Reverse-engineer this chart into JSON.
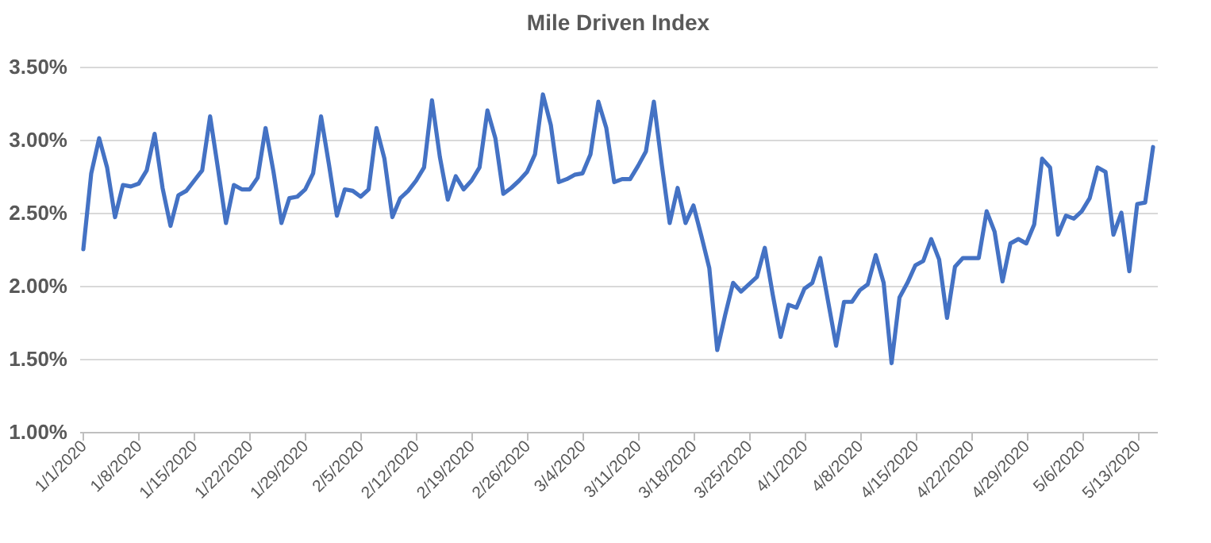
{
  "chart_data": {
    "type": "line",
    "title": "Mile Driven Index",
    "categories": [
      "1/1/2020",
      null,
      null,
      null,
      null,
      null,
      null,
      "1/8/2020",
      null,
      null,
      null,
      null,
      null,
      null,
      "1/15/2020",
      null,
      null,
      null,
      null,
      null,
      null,
      "1/22/2020",
      null,
      null,
      null,
      null,
      null,
      null,
      "1/29/2020",
      null,
      null,
      null,
      null,
      null,
      null,
      "2/5/2020",
      null,
      null,
      null,
      null,
      null,
      null,
      "2/12/2020",
      null,
      null,
      null,
      null,
      null,
      null,
      "2/19/2020",
      null,
      null,
      null,
      null,
      null,
      null,
      "2/26/2020",
      null,
      null,
      null,
      null,
      null,
      null,
      "3/4/2020",
      null,
      null,
      null,
      null,
      null,
      null,
      "3/11/2020",
      null,
      null,
      null,
      null,
      null,
      null,
      "3/18/2020",
      null,
      null,
      null,
      null,
      null,
      null,
      "3/25/2020",
      null,
      null,
      null,
      null,
      null,
      null,
      "4/1/2020",
      null,
      null,
      null,
      null,
      null,
      null,
      "4/8/2020",
      null,
      null,
      null,
      null,
      null,
      null,
      "4/15/2020",
      null,
      null,
      null,
      null,
      null,
      null,
      "4/22/2020",
      null,
      null,
      null,
      null,
      null,
      null,
      "4/29/2020",
      null,
      null,
      null,
      null,
      null,
      null,
      "5/6/2020",
      null,
      null,
      null,
      null,
      null,
      null,
      "5/13/2020",
      null,
      null
    ],
    "series": [
      {
        "color": "#4472c4",
        "values": [
          2.25,
          2.77,
          3.01,
          2.81,
          2.47,
          2.69,
          2.68,
          2.7,
          2.79,
          3.04,
          2.67,
          2.41,
          2.62,
          2.65,
          2.72,
          2.79,
          3.16,
          2.8,
          2.43,
          2.69,
          2.66,
          2.66,
          2.74,
          3.08,
          2.78,
          2.43,
          2.6,
          2.61,
          2.66,
          2.77,
          3.16,
          2.83,
          2.48,
          2.66,
          2.65,
          2.61,
          2.66,
          3.08,
          2.87,
          2.47,
          2.6,
          2.65,
          2.72,
          2.81,
          3.27,
          2.88,
          2.59,
          2.75,
          2.66,
          2.72,
          2.81,
          3.2,
          3.01,
          2.63,
          2.67,
          2.72,
          2.78,
          2.9,
          3.31,
          3.1,
          2.71,
          2.73,
          2.76,
          2.77,
          2.9,
          3.26,
          3.08,
          2.71,
          2.73,
          2.73,
          2.82,
          2.92,
          3.26,
          2.83,
          2.43,
          2.67,
          2.43,
          2.55,
          2.34,
          2.12,
          1.56,
          1.8,
          2.02,
          1.96,
          2.01,
          2.06,
          2.26,
          1.94,
          1.65,
          1.87,
          1.85,
          1.98,
          2.02,
          2.19,
          1.89,
          1.59,
          1.89,
          1.89,
          1.97,
          2.01,
          2.21,
          2.02,
          1.47,
          1.92,
          2.02,
          2.14,
          2.17,
          2.32,
          2.18,
          1.78,
          2.13,
          2.19,
          2.19,
          2.19,
          2.51,
          2.37,
          2.03,
          2.29,
          2.32,
          2.29,
          2.42,
          2.87,
          2.81,
          2.35,
          2.48,
          2.46,
          2.51,
          2.6,
          2.81,
          2.78,
          2.35,
          2.5,
          2.1,
          2.56,
          2.57,
          2.95
        ]
      }
    ],
    "ylim": [
      1,
      3.5
    ],
    "yticks": [
      {
        "value": 1,
        "label": "1.00%"
      },
      {
        "value": 1.5,
        "label": "1.50%"
      },
      {
        "value": 2,
        "label": "2.00%"
      },
      {
        "value": 2.5,
        "label": "2.50%"
      },
      {
        "value": 3,
        "label": "3.00%"
      },
      {
        "value": 3.5,
        "label": "3.50%"
      }
    ],
    "grid": "y",
    "legend": false,
    "marker": "none",
    "line_style": "solid"
  }
}
